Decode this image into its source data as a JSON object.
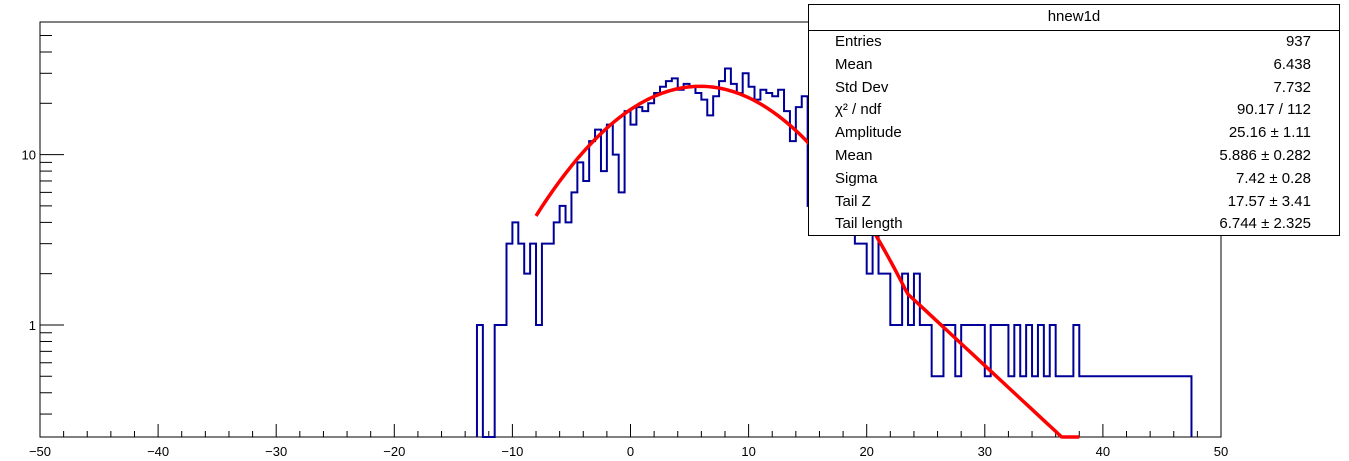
{
  "chart_data": {
    "type": "bar",
    "histogram_name": "hnew1d",
    "y_scale": "log",
    "xlim": [
      -50,
      50
    ],
    "ylim": [
      0.22,
      60
    ],
    "x_tick_labels": [
      "−50",
      "−40",
      "−30",
      "−20",
      "−10",
      "0",
      "10",
      "20",
      "30",
      "40",
      "50"
    ],
    "y_tick_labels": [
      "1",
      "10"
    ],
    "bin_width": 0.5,
    "bins": [
      [
        -13,
        1
      ],
      [
        -12.5,
        0
      ],
      [
        -12,
        0
      ],
      [
        -11.5,
        1
      ],
      [
        -11,
        1
      ],
      [
        -10.5,
        3
      ],
      [
        -10,
        4
      ],
      [
        -9.5,
        3
      ],
      [
        -9,
        2
      ],
      [
        -8.5,
        3
      ],
      [
        -8,
        1
      ],
      [
        -7.5,
        3
      ],
      [
        -7,
        3
      ],
      [
        -6.5,
        4
      ],
      [
        -6,
        5
      ],
      [
        -5.5,
        4
      ],
      [
        -5,
        6
      ],
      [
        -4.5,
        9
      ],
      [
        -4,
        7
      ],
      [
        -3.5,
        12
      ],
      [
        -3,
        14
      ],
      [
        -2.5,
        8
      ],
      [
        -2,
        15
      ],
      [
        -1.5,
        10
      ],
      [
        -1,
        6
      ],
      [
        -0.5,
        18
      ],
      [
        0,
        15
      ],
      [
        0.5,
        19
      ],
      [
        1,
        18
      ],
      [
        1.5,
        20
      ],
      [
        2,
        23
      ],
      [
        2.5,
        25
      ],
      [
        3,
        27
      ],
      [
        3.5,
        28
      ],
      [
        4,
        24
      ],
      [
        4.5,
        26
      ],
      [
        5,
        25
      ],
      [
        5.5,
        23
      ],
      [
        6,
        21
      ],
      [
        6.5,
        17
      ],
      [
        7,
        22
      ],
      [
        7.5,
        27
      ],
      [
        8,
        32
      ],
      [
        8.5,
        26
      ],
      [
        9,
        23
      ],
      [
        9.5,
        30
      ],
      [
        10,
        25
      ],
      [
        10.5,
        21
      ],
      [
        11,
        24
      ],
      [
        11.5,
        23
      ],
      [
        12,
        22
      ],
      [
        12.5,
        24
      ],
      [
        13,
        18
      ],
      [
        13.5,
        12
      ],
      [
        14,
        19
      ],
      [
        14.5,
        22
      ],
      [
        15,
        5
      ],
      [
        15.5,
        11
      ],
      [
        16,
        8
      ],
      [
        16.5,
        6
      ],
      [
        17,
        7
      ],
      [
        17.5,
        9
      ],
      [
        18,
        5
      ],
      [
        18.5,
        4
      ],
      [
        19,
        3
      ],
      [
        19.5,
        3
      ],
      [
        20,
        2
      ],
      [
        20.5,
        4
      ],
      [
        21,
        2
      ],
      [
        21.5,
        2
      ],
      [
        22,
        1
      ],
      [
        22.5,
        1
      ],
      [
        23,
        2
      ],
      [
        23.5,
        1
      ],
      [
        24,
        2
      ],
      [
        24.5,
        1
      ],
      [
        25,
        1
      ],
      [
        25.5,
        0.5
      ],
      [
        26,
        0.5
      ],
      [
        26.5,
        1
      ],
      [
        27,
        1
      ],
      [
        27.5,
        0.5
      ],
      [
        28,
        1
      ],
      [
        28.5,
        1
      ],
      [
        29,
        1
      ],
      [
        29.5,
        1
      ],
      [
        30,
        0.5
      ],
      [
        30.5,
        1
      ],
      [
        31,
        1
      ],
      [
        31.5,
        1
      ],
      [
        32,
        0.5
      ],
      [
        32.5,
        1
      ],
      [
        33,
        0.5
      ],
      [
        33.5,
        1
      ],
      [
        34,
        0.5
      ],
      [
        34.5,
        1
      ],
      [
        35,
        0.5
      ],
      [
        35.5,
        1
      ],
      [
        36,
        0.5
      ],
      [
        36.5,
        0.5
      ],
      [
        37,
        0.5
      ],
      [
        37.5,
        1
      ],
      [
        38,
        0.5
      ],
      [
        38.5,
        0.5
      ],
      [
        39,
        0.5
      ],
      [
        39.5,
        0.5
      ],
      [
        40,
        0.5
      ],
      [
        40.5,
        0.5
      ],
      [
        41,
        0.5
      ],
      [
        41.5,
        0.5
      ],
      [
        42,
        0.5
      ],
      [
        42.5,
        0.5
      ],
      [
        43,
        0.5
      ],
      [
        43.5,
        0.5
      ],
      [
        44,
        0.5
      ],
      [
        44.5,
        0.5
      ],
      [
        45,
        0.5
      ],
      [
        45.5,
        0.5
      ],
      [
        46,
        0.5
      ],
      [
        46.5,
        0.5
      ],
      [
        47,
        0.5
      ]
    ],
    "fit": {
      "model": "gaussian_with_exponential_tail",
      "amplitude": 25.16,
      "mean": 5.886,
      "sigma": 7.42,
      "tail_z": 17.57,
      "tail_length": 6.744,
      "x_range": [
        -8,
        38
      ]
    },
    "colors": {
      "histogram": "#000099",
      "fit": "#ff0000",
      "axis": "#000000"
    }
  },
  "stats_box": {
    "title": "hnew1d",
    "rows": [
      {
        "label": "Entries",
        "value": "937"
      },
      {
        "label": "Mean",
        "value": "6.438"
      },
      {
        "label": "Std Dev",
        "value": "7.732"
      },
      {
        "label": "χ² / ndf",
        "value": "90.17 / 112"
      },
      {
        "label": "Amplitude",
        "value": "25.16 ± 1.11"
      },
      {
        "label": "Mean",
        "value": "5.886 ± 0.282"
      },
      {
        "label": "Sigma",
        "value": "7.42 ± 0.28"
      },
      {
        "label": "Tail Z",
        "value": "17.57 ± 3.41"
      },
      {
        "label": "Tail length",
        "value": "6.744 ± 2.325"
      }
    ]
  }
}
